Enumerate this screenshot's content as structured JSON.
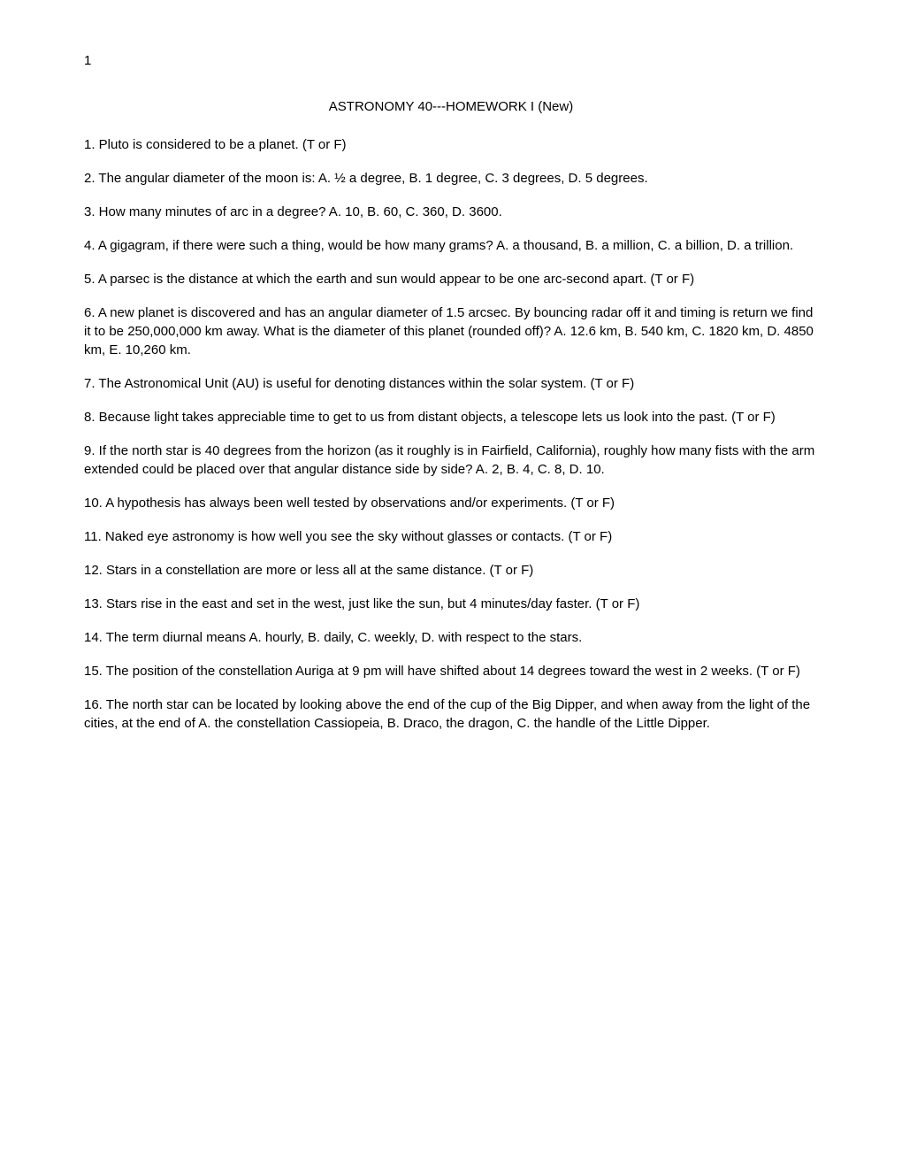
{
  "pageNumber": "1",
  "title": "ASTRONOMY 40---HOMEWORK I (New)",
  "questions": [
    "1.  Pluto is considered to be a planet.  (T or F)",
    "2.  The angular diameter of the moon is:   A. ½ a degree, B.  1 degree,  C.  3 degrees,  D. 5 degrees.",
    "3.  How many minutes of arc in a degree?   A. 10, B. 60, C. 360, D. 3600.",
    "4.  A gigagram, if there were such a thing, would be how many grams?   A. a thousand, B. a million, C. a billion, D. a trillion.",
    "5.  A parsec is the distance at which the earth and sun would appear to be one arc-second apart.  (T or F)",
    "6. A new planet is discovered and has an angular diameter of 1.5 arcsec.  By bouncing radar off it and timing is return we find it to be 250,000,000 km away.  What is the diameter of this planet (rounded off)?    A. 12.6 km,  B.  540 km,  C.  1820 km,  D. 4850 km, E. 10,260 km.",
    "7. The Astronomical Unit (AU) is useful for denoting distances within the solar system.  (T or F)",
    "8. Because light takes appreciable time to get to us from distant objects, a telescope lets us look into the past.     (T or F)",
    "9. If the north star is 40 degrees from the horizon (as it roughly is in Fairfield, California), roughly how many fists with the arm extended could be placed over that angular distance side by side?   A. 2, B. 4, C. 8, D. 10.",
    "10.  A hypothesis has always been well tested by observations and/or experiments.  (T or F)",
    "11. Naked eye astronomy is how well you see the sky without glasses or contacts.  (T or F)",
    "12. Stars in a constellation are more or less all at the same distance.  (T or F)",
    "13.  Stars rise in the east and set in the west, just like the sun, but 4 minutes/day faster.  (T or F)",
    "14. The term diurnal means   A. hourly, B. daily, C. weekly, D. with respect to the stars.",
    "15. The position of the constellation Auriga at 9 pm will have shifted about 14 degrees toward the west in 2 weeks.  (T or F)",
    "16. The north star can be located by looking above the end of the cup of the Big Dipper, and when away from the light of the cities, at the end of                                 A. the constellation Cassiopeia, B. Draco, the dragon, C. the handle of the Little Dipper."
  ]
}
